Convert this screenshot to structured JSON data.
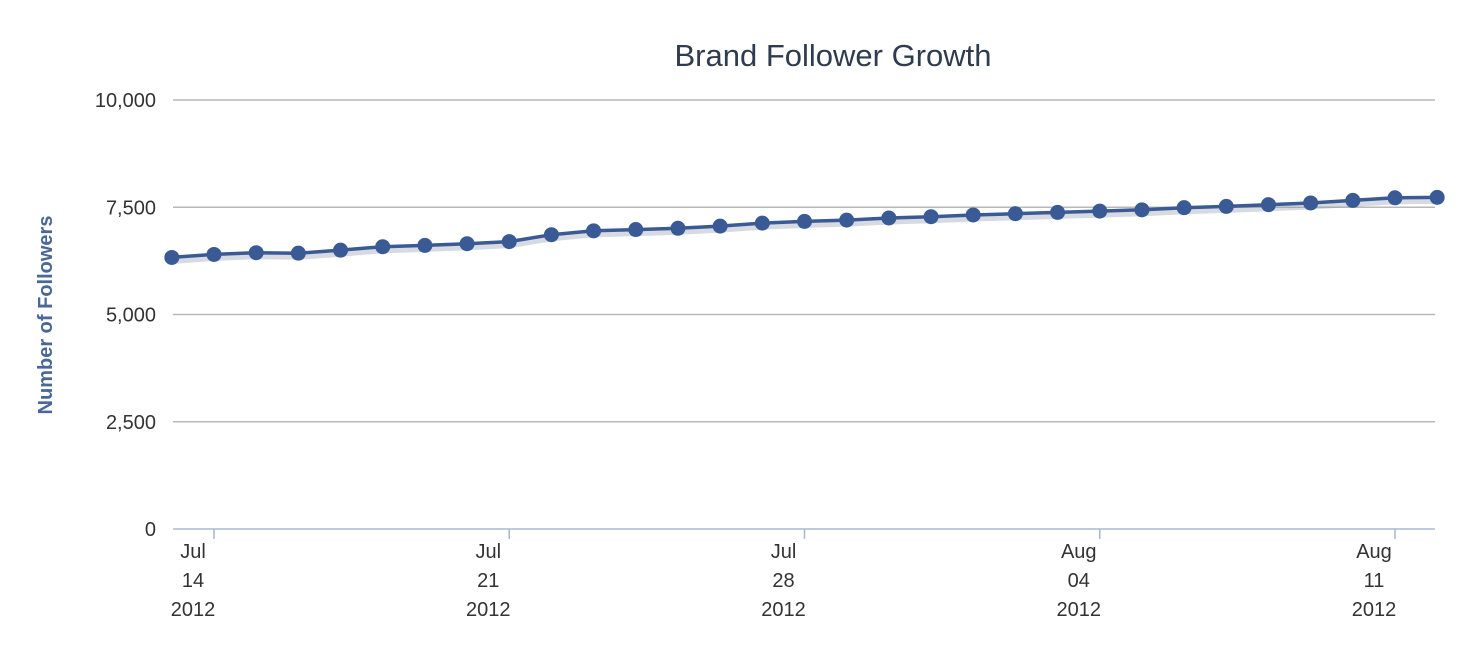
{
  "chart_data": {
    "type": "line",
    "title": "Brand Follower Growth",
    "xlabel": "",
    "ylabel": "Number of Followers",
    "ylim": [
      0,
      10000
    ],
    "y_ticks": [
      "0",
      "2,500",
      "5,000",
      "7,500",
      "10,000"
    ],
    "y_tick_values": [
      0,
      2500,
      5000,
      7500,
      10000
    ],
    "x_range": [
      "2012-07-14",
      "2012-08-11"
    ],
    "x_tick_labels": [
      {
        "date": "2012-07-14",
        "line1": "Jul",
        "line2": "14",
        "line3": "2012"
      },
      {
        "date": "2012-07-21",
        "line1": "Jul",
        "line2": "21",
        "line3": "2012"
      },
      {
        "date": "2012-07-28",
        "line1": "Jul",
        "line2": "28",
        "line3": "2012"
      },
      {
        "date": "2012-08-04",
        "line1": "Aug",
        "line2": "04",
        "line3": "2012"
      },
      {
        "date": "2012-08-11",
        "line1": "Aug",
        "line2": "11",
        "line3": "2012"
      }
    ],
    "grid": true,
    "legend": "none",
    "series_color": "#3a5a96",
    "series": [
      {
        "x": [
          "2012-07-13",
          "2012-07-14",
          "2012-07-15",
          "2012-07-16",
          "2012-07-17",
          "2012-07-18",
          "2012-07-19",
          "2012-07-20",
          "2012-07-21",
          "2012-07-22",
          "2012-07-23",
          "2012-07-24",
          "2012-07-25",
          "2012-07-26",
          "2012-07-27",
          "2012-07-28",
          "2012-07-29",
          "2012-07-30",
          "2012-07-31",
          "2012-08-01",
          "2012-08-02",
          "2012-08-03",
          "2012-08-04",
          "2012-08-05",
          "2012-08-06",
          "2012-08-07",
          "2012-08-08",
          "2012-08-09",
          "2012-08-10",
          "2012-08-11",
          "2012-08-12"
        ],
        "values": [
          6330,
          6400,
          6440,
          6430,
          6500,
          6580,
          6610,
          6650,
          6700,
          6860,
          6950,
          6980,
          7010,
          7060,
          7130,
          7170,
          7200,
          7250,
          7280,
          7320,
          7350,
          7380,
          7410,
          7440,
          7490,
          7520,
          7560,
          7600,
          7660,
          7720,
          7730
        ]
      }
    ]
  }
}
